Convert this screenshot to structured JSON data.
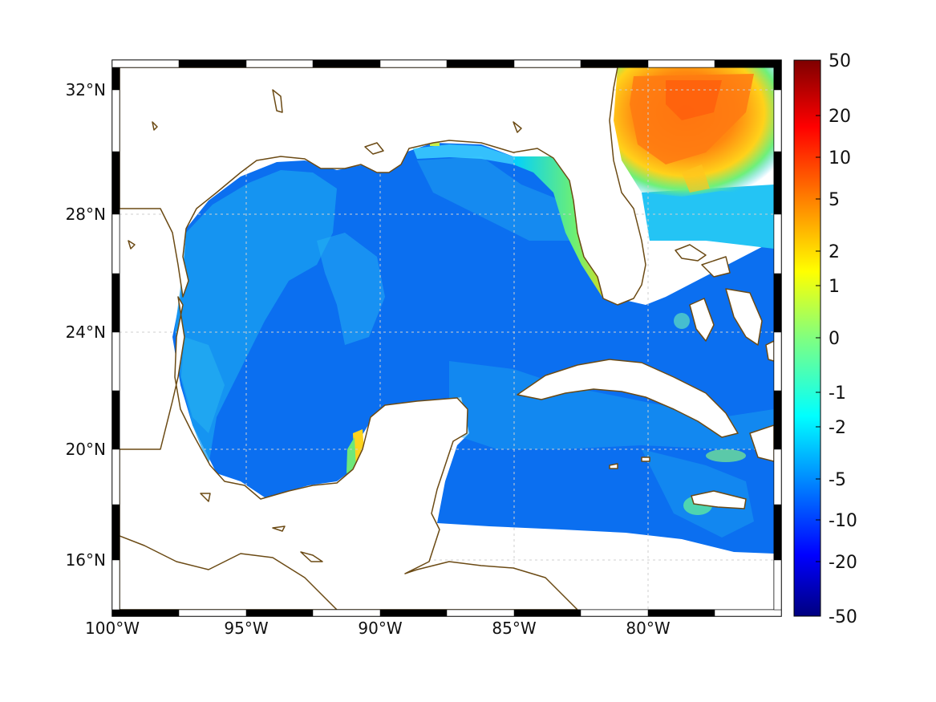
{
  "map": {
    "x_ticks": [
      "100°W",
      "95°W",
      "90°W",
      "85°W",
      "80°W"
    ],
    "y_ticks": [
      "32°N",
      "28°N",
      "24°N",
      "20°N",
      "16°N"
    ],
    "colors": {
      "ocean_base": "#0a72ee",
      "ocean_light": "#1aa6f0",
      "coastline": "#6b4a14",
      "grid": "#cfcfcf"
    }
  },
  "colorbar": {
    "labels": [
      "50",
      "20",
      "10",
      "5",
      "2",
      "1",
      "0",
      "-1",
      "-2",
      "-5",
      "-10",
      "-20",
      "-50"
    ],
    "colormap": "jet"
  }
}
